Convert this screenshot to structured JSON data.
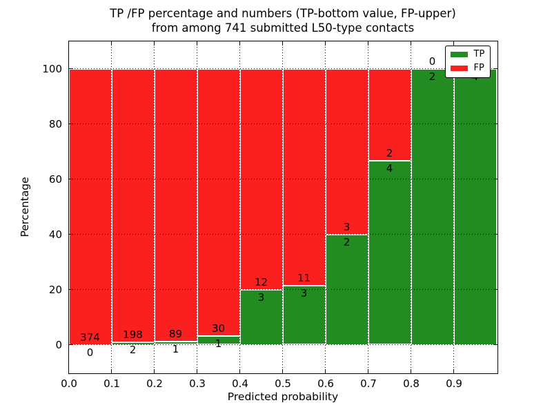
{
  "chart_data": {
    "type": "bar",
    "stacked": true,
    "title_lines": [
      "TP /FP percentage and numbers (TP-bottom value, FP-upper)",
      "from among 741 submitted L50-type contacts"
    ],
    "xlabel": "Predicted probability",
    "ylabel": "Percentage",
    "xlim": [
      0.0,
      1.0
    ],
    "ylim": [
      -10,
      110
    ],
    "xtick_labels": [
      "0.0",
      "0.1",
      "0.2",
      "0.3",
      "0.4",
      "0.5",
      "0.6",
      "0.7",
      "0.8",
      "0.9"
    ],
    "ytick_values": [
      0,
      20,
      40,
      60,
      80,
      100
    ],
    "bin_width": 0.1,
    "total_submitted": 741,
    "series": [
      {
        "name": "TP",
        "color": "#228b22",
        "counts": [
          0,
          2,
          1,
          1,
          3,
          3,
          2,
          4,
          2,
          4
        ]
      },
      {
        "name": "FP",
        "color": "#fb2020",
        "counts": [
          374,
          198,
          89,
          30,
          12,
          11,
          3,
          2,
          0,
          0
        ]
      }
    ],
    "tp_percentages": [
      0.0,
      1.0,
      1.11,
      3.23,
      20.0,
      21.43,
      40.0,
      66.67,
      100.0,
      100.0
    ],
    "legend": {
      "position": "upper right",
      "entries": [
        "TP",
        "FP"
      ]
    },
    "grid": {
      "linestyle": "dotted",
      "color": "#000000"
    }
  }
}
